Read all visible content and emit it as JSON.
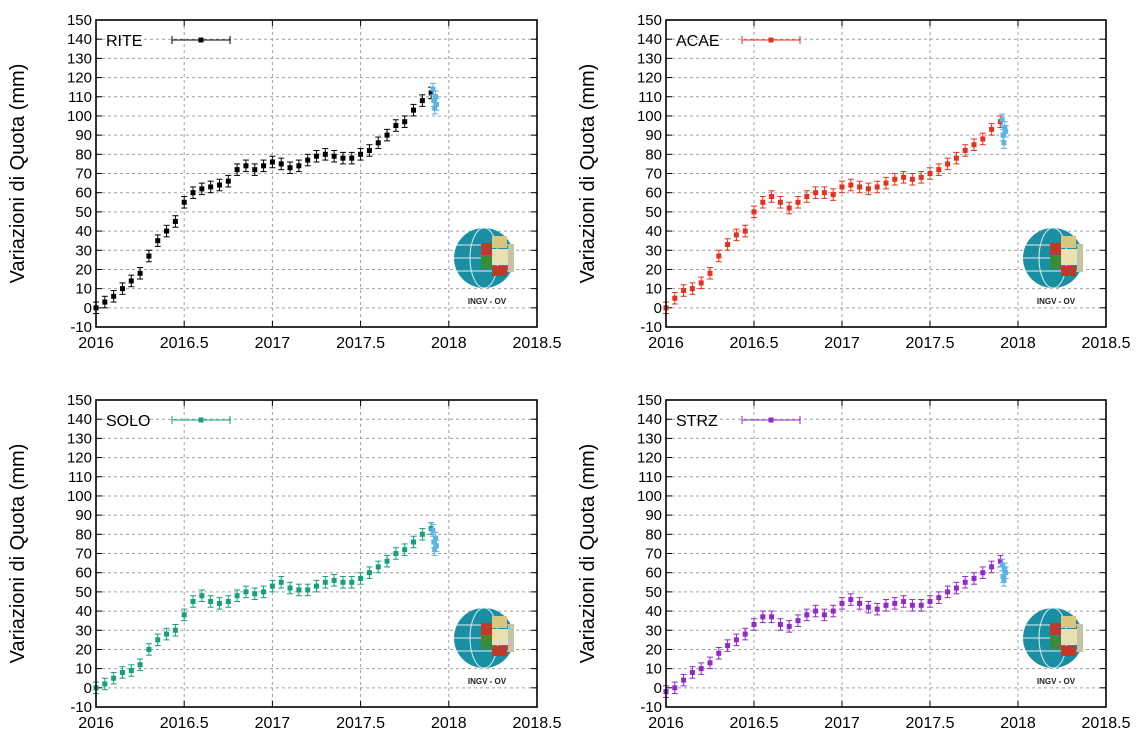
{
  "chart_data": [
    {
      "type": "scatter",
      "station": "RITE",
      "ylabel": "Variazioni di Quota (mm)",
      "xlim": [
        2016,
        2018.5
      ],
      "ylim": [
        -10,
        150
      ],
      "xticks": [
        "2016",
        "2016.5",
        "2017",
        "2017.5",
        "2018",
        "2018.5"
      ],
      "yticks": [
        "-10",
        "0",
        "10",
        "20",
        "30",
        "40",
        "50",
        "60",
        "70",
        "80",
        "90",
        "100",
        "110",
        "120",
        "130",
        "140",
        "150"
      ],
      "grid": true,
      "legend": "top-left",
      "logo_text": "INGV - OV",
      "color": "#000000",
      "recent_color": "#5ab4e5",
      "error_bar": 3,
      "series": [
        {
          "name": "RITE",
          "x": [
            2016.0,
            2016.05,
            2016.1,
            2016.15,
            2016.2,
            2016.25,
            2016.3,
            2016.35,
            2016.4,
            2016.45,
            2016.5,
            2016.55,
            2016.6,
            2016.65,
            2016.7,
            2016.75,
            2016.8,
            2016.85,
            2016.9,
            2016.95,
            2017.0,
            2017.05,
            2017.1,
            2017.15,
            2017.2,
            2017.25,
            2017.3,
            2017.35,
            2017.4,
            2017.45,
            2017.5,
            2017.55,
            2017.6,
            2017.65,
            2017.7,
            2017.75,
            2017.8,
            2017.85,
            2017.9
          ],
          "y": [
            0,
            3,
            6,
            10,
            14,
            18,
            27,
            35,
            40,
            45,
            55,
            60,
            62,
            63,
            64,
            66,
            72,
            74,
            72,
            74,
            76,
            75,
            73,
            74,
            77,
            79,
            80,
            79,
            78,
            78,
            80,
            82,
            86,
            90,
            95,
            97,
            103,
            108,
            112
          ]
        }
      ],
      "recent": {
        "x": [
          2017.91,
          2017.915,
          2017.92,
          2017.925,
          2017.93
        ],
        "y": [
          114,
          108,
          104,
          110,
          106
        ]
      }
    },
    {
      "type": "scatter",
      "station": "ACAE",
      "ylabel": "Variazioni di Quota (mm)",
      "xlim": [
        2016,
        2018.5
      ],
      "ylim": [
        -10,
        150
      ],
      "xticks": [
        "2016",
        "2016.5",
        "2017",
        "2017.5",
        "2018",
        "2018.5"
      ],
      "yticks": [
        "-10",
        "0",
        "10",
        "20",
        "30",
        "40",
        "50",
        "60",
        "70",
        "80",
        "90",
        "100",
        "110",
        "120",
        "130",
        "140",
        "150"
      ],
      "grid": true,
      "legend": "top-left",
      "logo_text": "INGV - OV",
      "color": "#e8301c",
      "recent_color": "#5ab4e5",
      "error_bar": 3,
      "series": [
        {
          "name": "ACAE",
          "x": [
            2016.0,
            2016.05,
            2016.1,
            2016.15,
            2016.2,
            2016.25,
            2016.3,
            2016.35,
            2016.4,
            2016.45,
            2016.5,
            2016.55,
            2016.6,
            2016.65,
            2016.7,
            2016.75,
            2016.8,
            2016.85,
            2016.9,
            2016.95,
            2017.0,
            2017.05,
            2017.1,
            2017.15,
            2017.2,
            2017.25,
            2017.3,
            2017.35,
            2017.4,
            2017.45,
            2017.5,
            2017.55,
            2017.6,
            2017.65,
            2017.7,
            2017.75,
            2017.8,
            2017.85,
            2017.9
          ],
          "y": [
            0,
            5,
            9,
            10,
            13,
            18,
            27,
            33,
            38,
            40,
            50,
            55,
            58,
            55,
            52,
            55,
            58,
            60,
            60,
            59,
            63,
            64,
            63,
            62,
            63,
            65,
            67,
            68,
            67,
            68,
            70,
            72,
            75,
            78,
            82,
            85,
            88,
            93,
            97
          ]
        }
      ],
      "recent": {
        "x": [
          2017.91,
          2017.915,
          2017.92,
          2017.925,
          2017.93
        ],
        "y": [
          98,
          90,
          86,
          94,
          92
        ]
      }
    },
    {
      "type": "scatter",
      "station": "SOLO",
      "ylabel": "Variazioni di Quota (mm)",
      "xlim": [
        2016,
        2018.5
      ],
      "ylim": [
        -10,
        150
      ],
      "xticks": [
        "2016",
        "2016.5",
        "2017",
        "2017.5",
        "2018",
        "2018.5"
      ],
      "yticks": [
        "-10",
        "0",
        "10",
        "20",
        "30",
        "40",
        "50",
        "60",
        "70",
        "80",
        "90",
        "100",
        "110",
        "120",
        "130",
        "140",
        "150"
      ],
      "grid": true,
      "legend": "top-left",
      "logo_text": "INGV - OV",
      "color": "#14a07c",
      "recent_color": "#5ab4e5",
      "error_bar": 3,
      "series": [
        {
          "name": "SOLO",
          "x": [
            2016.0,
            2016.05,
            2016.1,
            2016.15,
            2016.2,
            2016.25,
            2016.3,
            2016.35,
            2016.4,
            2016.45,
            2016.5,
            2016.55,
            2016.6,
            2016.65,
            2016.7,
            2016.75,
            2016.8,
            2016.85,
            2016.9,
            2016.95,
            2017.0,
            2017.05,
            2017.1,
            2017.15,
            2017.2,
            2017.25,
            2017.3,
            2017.35,
            2017.4,
            2017.45,
            2017.5,
            2017.55,
            2017.6,
            2017.65,
            2017.7,
            2017.75,
            2017.8,
            2017.85,
            2017.9
          ],
          "y": [
            0,
            2,
            5,
            8,
            9,
            12,
            20,
            25,
            28,
            30,
            38,
            45,
            48,
            45,
            44,
            45,
            48,
            50,
            49,
            50,
            53,
            55,
            52,
            51,
            51,
            53,
            55,
            56,
            55,
            55,
            57,
            60,
            63,
            66,
            70,
            72,
            76,
            80,
            83
          ]
        }
      ],
      "recent": {
        "x": [
          2017.91,
          2017.915,
          2017.92,
          2017.925,
          2017.93
        ],
        "y": [
          82,
          76,
          72,
          78,
          74
        ]
      }
    },
    {
      "type": "scatter",
      "station": "STRZ",
      "ylabel": "Variazioni di Quota (mm)",
      "xlim": [
        2016,
        2018.5
      ],
      "ylim": [
        -10,
        150
      ],
      "xticks": [
        "2016",
        "2016.5",
        "2017",
        "2017.5",
        "2018",
        "2018.5"
      ],
      "yticks": [
        "-10",
        "0",
        "10",
        "20",
        "30",
        "40",
        "50",
        "60",
        "70",
        "80",
        "90",
        "100",
        "110",
        "120",
        "130",
        "140",
        "150"
      ],
      "grid": true,
      "legend": "top-left",
      "logo_text": "INGV - OV",
      "color": "#9328c9",
      "recent_color": "#5ab4e5",
      "error_bar": 3,
      "series": [
        {
          "name": "STRZ",
          "x": [
            2016.0,
            2016.05,
            2016.1,
            2016.15,
            2016.2,
            2016.25,
            2016.3,
            2016.35,
            2016.4,
            2016.45,
            2016.5,
            2016.55,
            2016.6,
            2016.65,
            2016.7,
            2016.75,
            2016.8,
            2016.85,
            2016.9,
            2016.95,
            2017.0,
            2017.05,
            2017.1,
            2017.15,
            2017.2,
            2017.25,
            2017.3,
            2017.35,
            2017.4,
            2017.45,
            2017.5,
            2017.55,
            2017.6,
            2017.65,
            2017.7,
            2017.75,
            2017.8,
            2017.85,
            2017.9
          ],
          "y": [
            -2,
            0,
            4,
            8,
            10,
            13,
            18,
            22,
            25,
            28,
            33,
            37,
            37,
            33,
            32,
            35,
            38,
            40,
            38,
            40,
            44,
            46,
            44,
            42,
            41,
            43,
            44,
            45,
            43,
            43,
            45,
            47,
            50,
            52,
            55,
            57,
            60,
            63,
            66
          ]
        }
      ],
      "recent": {
        "x": [
          2017.91,
          2017.915,
          2017.92,
          2017.925,
          2017.93
        ],
        "y": [
          64,
          58,
          56,
          62,
          60
        ]
      }
    }
  ]
}
